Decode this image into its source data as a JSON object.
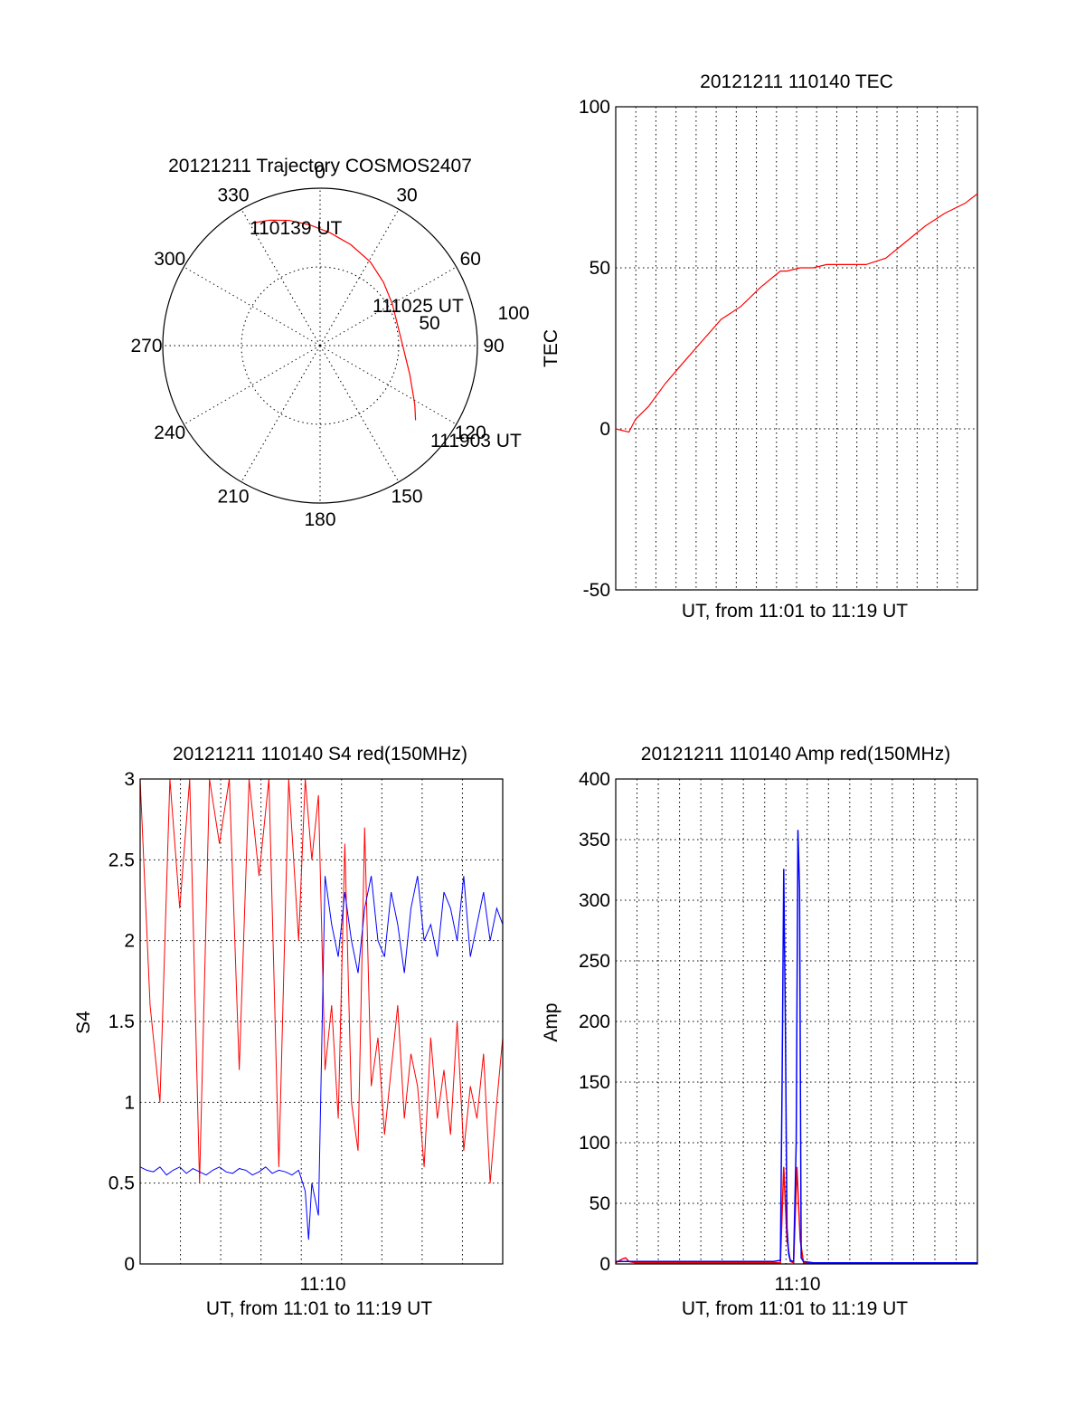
{
  "colors": {
    "red": "#ff0000",
    "blue": "#0000ff",
    "axis": "#000000"
  },
  "chart_data": [
    {
      "type": "polar",
      "title": "20121211 Trajectory COSMOS2407",
      "azimuth_labels": [
        "0",
        "30",
        "60",
        "90",
        "120",
        "150",
        "180",
        "210",
        "240",
        "270",
        "300",
        "330"
      ],
      "radial_labels": [
        "50",
        "100"
      ],
      "rlim": [
        0,
        100
      ],
      "trajectory": {
        "azimuth_deg": [
          331,
          338,
          346,
          355,
          5,
          17,
          31,
          45,
          60,
          75,
          92,
          108,
          122,
          128
        ],
        "radius": [
          89,
          86,
          82,
          77,
          72,
          67,
          62,
          57,
          53,
          51,
          53,
          60,
          71,
          77
        ]
      },
      "annotations": [
        {
          "text": "110139 UT"
        },
        {
          "text": "111025 UT"
        },
        {
          "text": "111903 UT"
        }
      ]
    },
    {
      "type": "line",
      "title": "20121211 110140 TEC",
      "xlabel": "UT, from 11:01 to 11:19 UT",
      "ylabel": "TEC",
      "ylim": [
        -50,
        100
      ],
      "yticks": [
        "-50",
        "0",
        "50",
        "100"
      ],
      "xlim": [
        0,
        1098
      ],
      "grid": true,
      "series": [
        {
          "color": "red",
          "x": [
            0,
            40,
            60,
            100,
            150,
            200,
            260,
            320,
            380,
            440,
            500,
            520,
            560,
            600,
            640,
            700,
            760,
            820,
            880,
            940,
            1000,
            1060,
            1098
          ],
          "y": [
            0,
            -1,
            3,
            7,
            14,
            20,
            27,
            34,
            38,
            44,
            49,
            49,
            50,
            50,
            51,
            51,
            51,
            53,
            58,
            63,
            67,
            70,
            73
          ]
        }
      ]
    },
    {
      "type": "line",
      "title": "20121211 110140 S4 red(150MHz)",
      "xlabel": "UT, from 11:01 to 11:19 UT",
      "ylabel": "S4",
      "ylim": [
        0,
        3
      ],
      "yticks": [
        "0",
        "0.5",
        "1",
        "1.5",
        "2",
        "2.5",
        "3"
      ],
      "xtick_labels": [
        "11:10"
      ],
      "xlim": [
        0,
        1098
      ],
      "grid": true,
      "series": [
        {
          "color": "red",
          "x": [
            0,
            30,
            60,
            90,
            120,
            150,
            180,
            210,
            240,
            270,
            300,
            330,
            360,
            390,
            420,
            450,
            480,
            500,
            520,
            540,
            560,
            580,
            600,
            620,
            640,
            660,
            680,
            700,
            720,
            740,
            760,
            780,
            800,
            820,
            840,
            860,
            880,
            900,
            920,
            940,
            960,
            980,
            1000,
            1020,
            1040,
            1060,
            1080,
            1098
          ],
          "y": [
            3,
            1.6,
            1.0,
            3,
            2.2,
            3,
            0.5,
            3,
            2.6,
            3,
            1.2,
            3,
            2.4,
            3,
            0.6,
            3,
            2.0,
            3,
            2.5,
            2.9,
            1.2,
            1.6,
            0.9,
            2.6,
            1.0,
            0.7,
            2.7,
            1.1,
            1.4,
            0.8,
            1.2,
            1.6,
            0.9,
            1.3,
            1.1,
            0.6,
            1.4,
            0.9,
            1.2,
            0.8,
            1.5,
            0.7,
            1.1,
            0.9,
            1.3,
            0.5,
            1.0,
            1.4
          ]
        },
        {
          "color": "blue",
          "x": [
            0,
            20,
            40,
            60,
            80,
            100,
            120,
            140,
            160,
            180,
            200,
            220,
            240,
            260,
            280,
            300,
            320,
            340,
            360,
            380,
            400,
            420,
            440,
            460,
            480,
            500,
            510,
            520,
            540,
            560,
            580,
            600,
            620,
            640,
            660,
            680,
            700,
            720,
            740,
            760,
            780,
            800,
            820,
            840,
            860,
            880,
            900,
            920,
            940,
            960,
            980,
            1000,
            1020,
            1040,
            1060,
            1080,
            1098
          ],
          "y": [
            0.6,
            0.58,
            0.57,
            0.6,
            0.55,
            0.58,
            0.6,
            0.56,
            0.59,
            0.57,
            0.55,
            0.58,
            0.6,
            0.57,
            0.56,
            0.59,
            0.58,
            0.55,
            0.57,
            0.6,
            0.56,
            0.58,
            0.57,
            0.55,
            0.58,
            0.45,
            0.15,
            0.5,
            0.3,
            2.4,
            2.1,
            1.9,
            2.3,
            2.0,
            1.8,
            2.2,
            2.4,
            2.0,
            1.9,
            2.3,
            2.1,
            1.8,
            2.2,
            2.4,
            2.0,
            2.1,
            1.9,
            2.3,
            2.2,
            2.0,
            2.4,
            1.9,
            2.1,
            2.3,
            2.0,
            2.2,
            2.1
          ]
        }
      ]
    },
    {
      "type": "line",
      "title": "20121211 110140 Amp red(150MHz)",
      "xlabel": "UT, from 11:01 to 11:19 UT",
      "ylabel": "Amp",
      "ylim": [
        0,
        400
      ],
      "yticks": [
        "0",
        "50",
        "100",
        "150",
        "200",
        "250",
        "300",
        "350",
        "400"
      ],
      "xtick_labels": [
        "11:10"
      ],
      "xlim": [
        0,
        1098
      ],
      "grid": true,
      "series": [
        {
          "color": "red",
          "x": [
            0,
            20,
            30,
            40,
            60,
            100,
            200,
            300,
            400,
            480,
            500,
            510,
            520,
            530,
            540,
            550,
            560,
            570,
            580,
            600,
            700,
            800,
            900,
            1000,
            1098
          ],
          "y": [
            1,
            4,
            5,
            2,
            1,
            1,
            1,
            1,
            1,
            1,
            1,
            80,
            20,
            2,
            1,
            80,
            20,
            1,
            1,
            1,
            1,
            1,
            1,
            1,
            1
          ]
        },
        {
          "color": "blue",
          "x": [
            0,
            100,
            200,
            300,
            400,
            480,
            500,
            505,
            510,
            515,
            520,
            525,
            530,
            540,
            548,
            553,
            558,
            563,
            570,
            600,
            700,
            800,
            900,
            1000,
            1098
          ],
          "y": [
            2,
            2,
            2,
            2,
            2,
            2,
            3,
            150,
            326,
            200,
            30,
            8,
            3,
            2,
            100,
            358,
            310,
            5,
            2,
            1,
            1,
            1,
            1,
            1,
            1
          ]
        }
      ]
    }
  ]
}
